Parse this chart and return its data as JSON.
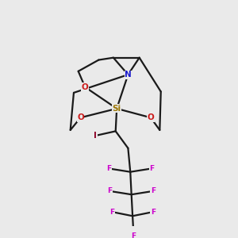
{
  "background_color": "#eaeaea",
  "bond_color": "#1a1a1a",
  "bond_lw": 1.6,
  "atom_colors": {
    "Si": "#9a7500",
    "N": "#1a1acc",
    "O": "#cc1a1a",
    "I": "#8b0026",
    "F": "#cc00cc"
  },
  "atom_fontsize": {
    "Si": 7.5,
    "N": 7.5,
    "O": 7.5,
    "I": 7.5,
    "F": 6.5
  },
  "figsize": [
    3.0,
    3.0
  ],
  "dpi": 100
}
